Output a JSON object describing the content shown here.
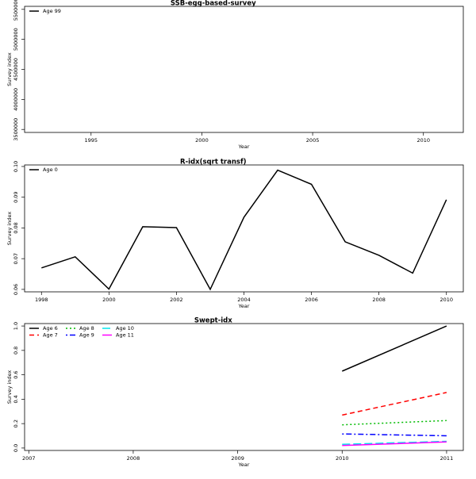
{
  "chart_data": [
    {
      "type": "line",
      "title": "SSB-egg-based-survey",
      "xlabel": "Year",
      "ylabel": "Survey index",
      "xlim": [
        1992,
        2011.8
      ],
      "ylim": [
        3450000,
        5550000
      ],
      "xticks": [
        1995,
        2000,
        2005,
        2010
      ],
      "yticks": [
        3500000,
        4000000,
        4500000,
        5000000,
        5500000
      ],
      "legend_position": "top-left",
      "series": [
        {
          "name": "Age 99",
          "color": "#000000",
          "dash": "solid",
          "x": [],
          "y": []
        }
      ]
    },
    {
      "type": "line",
      "title": "R-idx(sqrt transf)",
      "xlabel": "Year",
      "ylabel": "Survey index",
      "xlim": [
        1997.5,
        2010.5
      ],
      "ylim": [
        0.0592,
        0.1005
      ],
      "xticks": [
        1998,
        2000,
        2002,
        2004,
        2006,
        2008,
        2010
      ],
      "yticks": [
        0.06,
        0.07,
        0.08,
        0.09,
        0.1
      ],
      "ytick_labels": [
        "0.06",
        "0.07",
        "0.08",
        "0.09",
        "0.10"
      ],
      "legend_position": "top-left",
      "series": [
        {
          "name": "Age 0",
          "color": "#000000",
          "dash": "solid",
          "x": [
            1998,
            1999,
            2000,
            2001,
            2002,
            2003,
            2004,
            2005,
            2006,
            2007,
            2008,
            2009,
            2010
          ],
          "y": [
            0.067,
            0.0706,
            0.0601,
            0.0804,
            0.0801,
            0.06,
            0.0835,
            0.0988,
            0.0942,
            0.0755,
            0.0711,
            0.0653,
            0.0892
          ]
        }
      ]
    },
    {
      "type": "line",
      "title": "Swept-idx",
      "xlabel": "Year",
      "ylabel": "Survey index",
      "xlim": [
        2006.96,
        2011.16
      ],
      "ylim": [
        -0.02,
        1.02
      ],
      "xticks": [
        2007,
        2008,
        2009,
        2010,
        2011
      ],
      "yticks": [
        0,
        0.2,
        0.4,
        0.6,
        0.8,
        1
      ],
      "ytick_labels": [
        "0.0",
        "0.2",
        "0.4",
        "0.6",
        "0.8",
        "1.0"
      ],
      "legend_position": "top-left",
      "series": [
        {
          "name": "Age 6",
          "color": "#000000",
          "dash": "solid",
          "x": [
            2010,
            2011
          ],
          "y": [
            0.63,
            1.0
          ]
        },
        {
          "name": "Age 7",
          "color": "#ff0000",
          "dash": "dashed",
          "x": [
            2010,
            2011
          ],
          "y": [
            0.27,
            0.455
          ]
        },
        {
          "name": "Age 8",
          "color": "#00bb00",
          "dash": "dotted",
          "x": [
            2010,
            2011
          ],
          "y": [
            0.19,
            0.225
          ]
        },
        {
          "name": "Age 9",
          "color": "#0000ff",
          "dash": "dotdash",
          "x": [
            2010,
            2011
          ],
          "y": [
            0.115,
            0.1
          ]
        },
        {
          "name": "Age 10",
          "color": "#00e5ee",
          "dash": "longdash",
          "x": [
            2010,
            2011
          ],
          "y": [
            0.03,
            0.055
          ]
        },
        {
          "name": "Age 11",
          "color": "#ff00ff",
          "dash": "solid",
          "x": [
            2010,
            2011
          ],
          "y": [
            0.02,
            0.05
          ]
        }
      ]
    }
  ]
}
